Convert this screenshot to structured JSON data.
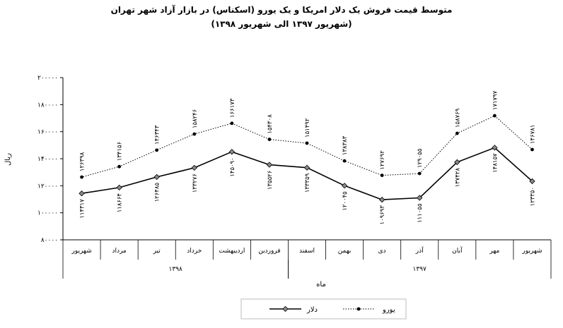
{
  "chart_data": {
    "type": "line",
    "title": "متوسط قیمت فروش یک دلار امریکا و یک یورو (اسکناس) در بازار آزاد شهر تهران",
    "subtitle": "(شهریور ۱۳۹۷ الی شهریور ۱۳۹۸)",
    "xlabel": "ماه",
    "ylabel": "ریال",
    "ylim": [
      80000,
      200000
    ],
    "y_ticks": [
      80000,
      100000,
      120000,
      140000,
      160000,
      180000,
      200000
    ],
    "y_tick_labels": [
      "۸۰۰۰۰",
      "۱۰۰۰۰۰",
      "۱۲۰۰۰۰",
      "۱۴۰۰۰۰",
      "۱۶۰۰۰۰",
      "۱۸۰۰۰۰",
      "۲۰۰۰۰۰"
    ],
    "grid": false,
    "legend_position": "bottom",
    "categories": [
      "شهریور",
      "مهر",
      "آبان",
      "آذر",
      "دی",
      "بهمن",
      "اسفند",
      "فروردین",
      "اردیبهشت",
      "خرداد",
      "تیر",
      "مرداد",
      "شهریور"
    ],
    "year_groups": [
      {
        "label": "۱۳۹۷",
        "count": 7
      },
      {
        "label": "۱۳۹۸",
        "count": 6
      }
    ],
    "series": [
      {
        "name": "دلار",
        "style": "solid",
        "marker": "diamond",
        "color": "#000000",
        "values": [
          123350,
          148157,
          137428,
          111055,
          109693,
          120045,
          133359,
          135526,
          145090,
          133276,
          126485,
          118664,
          114317
        ],
        "labels": [
          "۱۲۳۳۵۰",
          "۱۴۸۱۵۷",
          "۱۳۷۴۲۸",
          "۱۱۱۰۵۵",
          "۱۰۹۶۹۳",
          "۱۲۰۰۴۵",
          "۱۳۳۳۵۹",
          "۱۳۵۵۲۶",
          "۱۴۵۰۹۰",
          "۱۳۳۲۷۶",
          "۱۲۶۴۸۵",
          "۱۱۸۶۶۴",
          "۱۱۴۳۱۷"
        ]
      },
      {
        "name": "یورو",
        "style": "dotted",
        "marker": "circle",
        "color": "#000000",
        "values": [
          146781,
          171797,
          158769,
          129055,
          127692,
          138383,
          151492,
          154308,
          166173,
          158246,
          146343,
          134156,
          126398
        ],
        "labels": [
          "۱۴۶۷۸۱",
          "۱۷۱۷۹۷",
          "۱۵۸۷۶۹",
          "۱۲۹۰۵۵",
          "۱۲۷۶۹۲",
          "۱۳۸۳۸۳",
          "۱۵۱۴۹۲",
          "۱۵۴۳۰۸",
          "۱۶۶۱۷۳",
          "۱۵۸۲۴۶",
          "۱۴۶۳۴۳",
          "۱۳۴۱۵۶",
          "۱۲۶۳۹۸"
        ]
      }
    ]
  }
}
